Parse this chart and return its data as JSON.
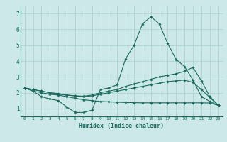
{
  "xlabel": "Humidex (Indice chaleur)",
  "background_color": "#cce8e8",
  "grid_color": "#aacfcf",
  "line_color": "#1a6b5e",
  "xlim": [
    -0.5,
    23.5
  ],
  "ylim": [
    0.5,
    7.5
  ],
  "yticks": [
    1,
    2,
    3,
    4,
    5,
    6,
    7
  ],
  "xticks": [
    0,
    1,
    2,
    3,
    4,
    5,
    6,
    7,
    8,
    9,
    10,
    11,
    12,
    13,
    14,
    15,
    16,
    17,
    18,
    19,
    20,
    21,
    22,
    23
  ],
  "series": [
    {
      "x": [
        0,
        1,
        2,
        3,
        4,
        5,
        6,
        7,
        8,
        9,
        10,
        11,
        12,
        13,
        14,
        15,
        16,
        17,
        18,
        19,
        20,
        21,
        22,
        23
      ],
      "y": [
        2.3,
        2.1,
        1.75,
        1.6,
        1.5,
        1.1,
        0.75,
        0.75,
        0.9,
        2.2,
        2.3,
        2.5,
        4.15,
        5.0,
        6.35,
        6.8,
        6.35,
        5.1,
        4.1,
        3.65,
        2.8,
        1.75,
        1.45,
        1.2
      ]
    },
    {
      "x": [
        0,
        1,
        2,
        3,
        4,
        5,
        6,
        7,
        8,
        9,
        10,
        11,
        12,
        13,
        14,
        15,
        16,
        17,
        18,
        19,
        20,
        21,
        22,
        23
      ],
      "y": [
        2.3,
        2.2,
        2.1,
        2.0,
        1.9,
        1.85,
        1.8,
        1.78,
        1.85,
        2.0,
        2.1,
        2.2,
        2.4,
        2.55,
        2.7,
        2.85,
        3.0,
        3.1,
        3.2,
        3.35,
        3.6,
        2.75,
        1.75,
        1.2
      ]
    },
    {
      "x": [
        0,
        1,
        2,
        3,
        4,
        5,
        6,
        7,
        8,
        9,
        10,
        11,
        12,
        13,
        14,
        15,
        16,
        17,
        18,
        19,
        20,
        21,
        22,
        23
      ],
      "y": [
        2.3,
        2.2,
        2.1,
        2.0,
        1.95,
        1.85,
        1.8,
        1.75,
        1.8,
        1.9,
        2.0,
        2.1,
        2.2,
        2.3,
        2.4,
        2.5,
        2.6,
        2.7,
        2.75,
        2.8,
        2.65,
        2.2,
        1.7,
        1.2
      ]
    },
    {
      "x": [
        0,
        1,
        2,
        3,
        4,
        5,
        6,
        7,
        8,
        9,
        10,
        11,
        12,
        13,
        14,
        15,
        16,
        17,
        18,
        19,
        20,
        21,
        22,
        23
      ],
      "y": [
        2.3,
        2.1,
        2.0,
        1.9,
        1.85,
        1.75,
        1.65,
        1.55,
        1.5,
        1.45,
        1.42,
        1.4,
        1.38,
        1.37,
        1.36,
        1.36,
        1.36,
        1.36,
        1.36,
        1.36,
        1.36,
        1.36,
        1.35,
        1.2
      ]
    }
  ]
}
